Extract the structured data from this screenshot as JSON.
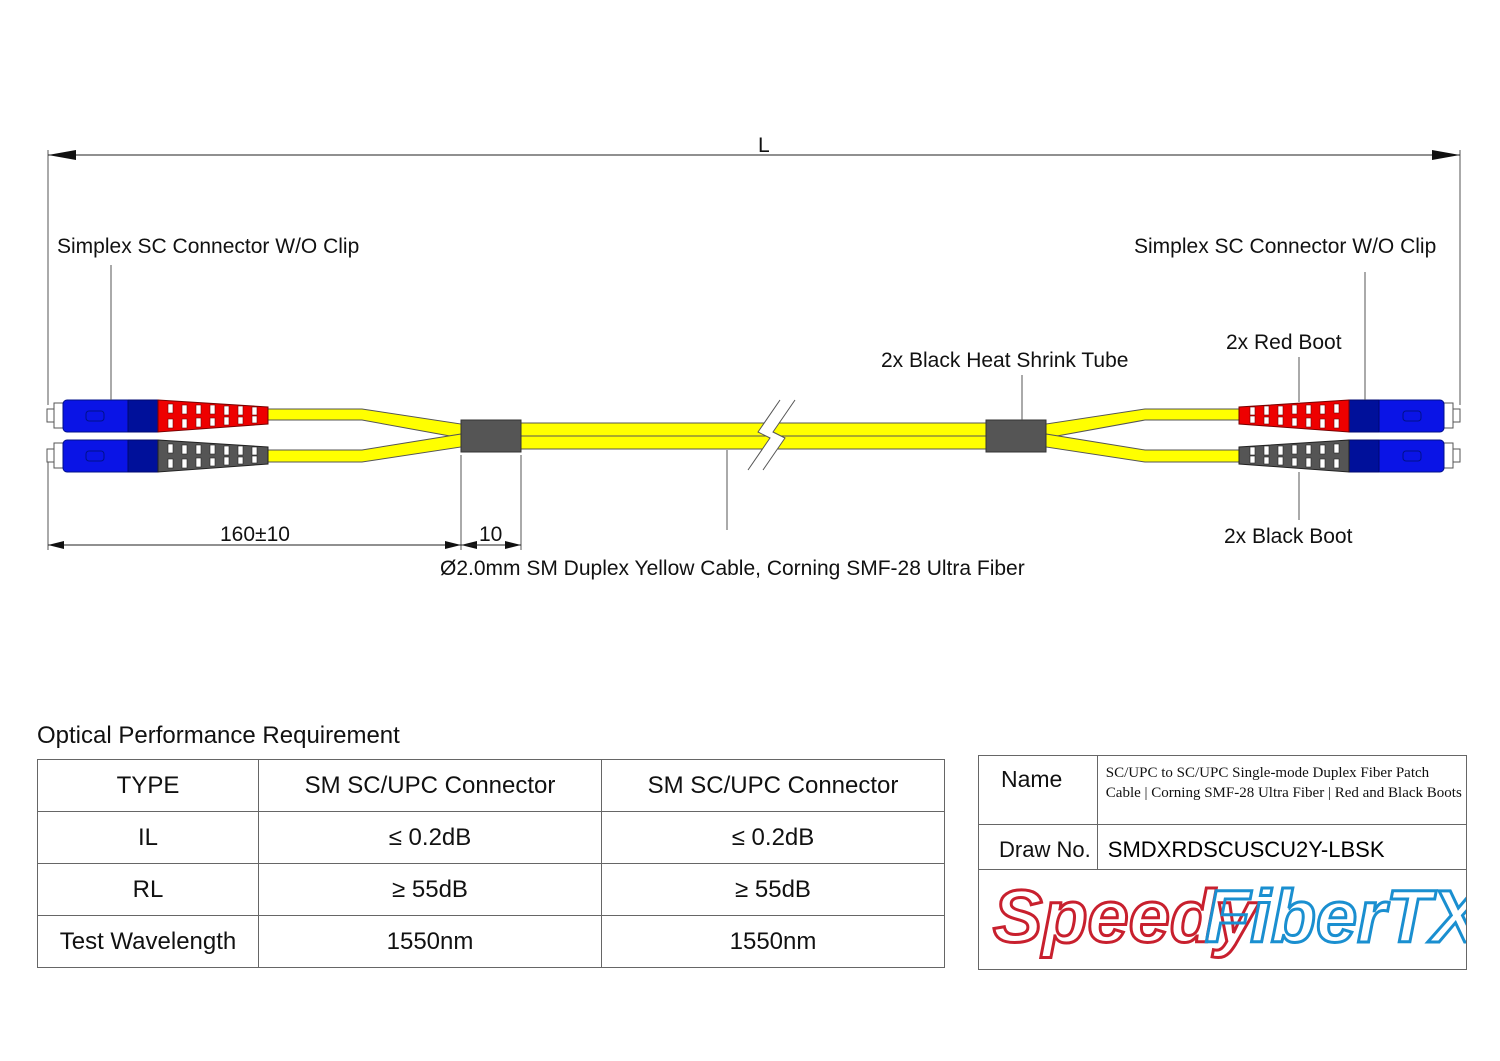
{
  "diagram": {
    "length_label": "L",
    "left_connector_label": "Simplex SC Connector W/O Clip",
    "right_connector_label": "Simplex SC Connector W/O Clip",
    "heat_shrink_label": "2x Black Heat Shrink Tube",
    "red_boot_label": "2x Red Boot",
    "black_boot_label": "2x Black Boot",
    "breakout_dim": "160±10",
    "shrink_dim": "10",
    "cable_label": "Ø2.0mm SM Duplex Yellow Cable, Corning SMF-28 Ultra Fiber",
    "colors": {
      "connector": "#0a14e6",
      "collar": "#00109a",
      "red_boot": "#ee0000",
      "black_boot": "#555555",
      "cable": "#ffff00",
      "heat_shrink": "#555555"
    }
  },
  "performance": {
    "title": "Optical Performance Requirement",
    "header": [
      "TYPE",
      "SM SC/UPC Connector",
      "SM SC/UPC Connector"
    ],
    "rows": [
      [
        "IL",
        "≤ 0.2dB",
        "≤ 0.2dB"
      ],
      [
        "RL",
        "≥ 55dB",
        "≥ 55dB"
      ],
      [
        "Test Wavelength",
        "1550nm",
        "1550nm"
      ]
    ]
  },
  "title_block": {
    "name_label": "Name",
    "name_value": "SC/UPC to SC/UPC Single-mode Duplex Fiber Patch Cable | Corning SMF-28 Ultra Fiber | Red and Black Boots",
    "draw_label": "Draw No.",
    "draw_value": "SMDXRDSCUSCU2Y-LBSK",
    "logo_part1": "Speedy",
    "logo_part2": "FiberTX",
    "logo_colors": {
      "speedy": "#c8202e",
      "fibertx": "#1a8fd0"
    }
  }
}
